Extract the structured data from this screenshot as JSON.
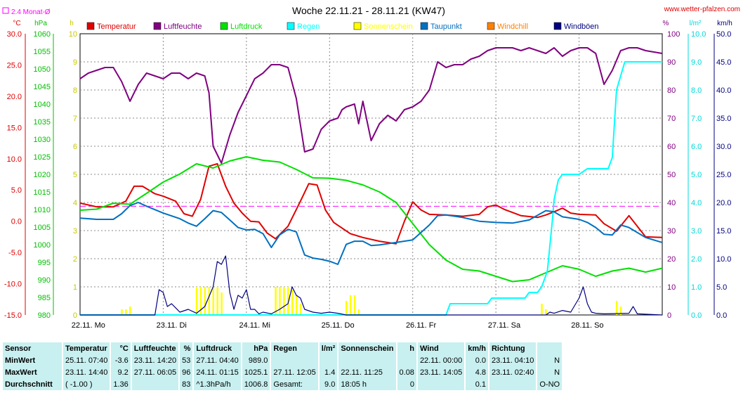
{
  "header": {
    "title": "Woche 22.11.21 - 28.11.21 (KW47)",
    "site": "www.wetter-pfalzen.com",
    "avg_legend": "2.4 Monat-Ø"
  },
  "colors": {
    "temperature": "#e00000",
    "humidity": "#800080",
    "pressure": "#00e000",
    "rain": "#00ffff",
    "sunshine": "#ffff00",
    "dewpoint": "#0070c0",
    "windchill": "#ff8000",
    "gusts": "#000080",
    "avgline": "#ff00ff",
    "table_bg": "#c8f0f0"
  },
  "chart_data": {
    "type": "line",
    "title": "Woche 22.11.21 - 28.11.21 (KW47)",
    "x_ticks": [
      "22.11. Mo",
      "23.11. Di",
      "24.11. Mi",
      "25.11. Do",
      "26.11. Fr",
      "27.11. Sa",
      "28.11. So"
    ],
    "x_range": [
      0,
      7
    ],
    "axes": {
      "temperature": {
        "unit": "°C",
        "range": [
          -15,
          30
        ],
        "ticks": [
          "30.0",
          "25.0",
          "20.0",
          "15.0",
          "10.0",
          "5.0",
          "0.0",
          "-5.0",
          "-10.0",
          "-15.0"
        ]
      },
      "pressure": {
        "unit": "hPa",
        "range": [
          980,
          1060
        ],
        "ticks": [
          "1060",
          "1055",
          "1050",
          "1045",
          "1040",
          "1035",
          "1030",
          "1025",
          "1020",
          "1015",
          "1010",
          "1005",
          "1000",
          "995",
          "990",
          "985",
          "980"
        ]
      },
      "sunshine": {
        "unit": "h",
        "range": [
          0,
          10
        ],
        "ticks": [
          "10",
          "9",
          "8",
          "7",
          "6",
          "5",
          "4",
          "3",
          "2",
          "1",
          "0"
        ]
      },
      "humidity": {
        "unit": "%",
        "range": [
          0,
          100
        ],
        "ticks": [
          "100",
          "90",
          "80",
          "70",
          "60",
          "50",
          "40",
          "30",
          "20",
          "10",
          "0"
        ]
      },
      "rain": {
        "unit": "l/m²",
        "range": [
          0,
          10
        ],
        "ticks": [
          "10.0",
          "9.0",
          "8.0",
          "7.0",
          "6.0",
          "5.0",
          "4.0",
          "3.0",
          "2.0",
          "1.0",
          "0.0"
        ]
      },
      "wind": {
        "unit": "km/h",
        "range": [
          0,
          50
        ],
        "ticks": [
          "50.0",
          "45.0",
          "40.0",
          "35.0",
          "30.0",
          "25.0",
          "20.0",
          "15.0",
          "10.0",
          "5.0",
          "0.0"
        ]
      }
    },
    "grid": true,
    "legend_position": "top",
    "monthly_average_temperature": 2.4,
    "series": [
      {
        "name": "Temperatur",
        "axis": "temperature",
        "color": "#e00000",
        "x": [
          0,
          0.2,
          0.4,
          0.55,
          0.65,
          0.75,
          0.9,
          1.0,
          1.15,
          1.25,
          1.35,
          1.45,
          1.55,
          1.65,
          1.75,
          1.85,
          1.95,
          2.05,
          2.15,
          2.25,
          2.35,
          2.5,
          2.65,
          2.75,
          2.85,
          2.95,
          3.05,
          3.15,
          3.25,
          3.4,
          3.6,
          3.8,
          3.9,
          4.0,
          4.1,
          4.2,
          4.4,
          4.6,
          4.8,
          4.9,
          5.0,
          5.1,
          5.3,
          5.5,
          5.6,
          5.7,
          5.8,
          5.9,
          6.0,
          6.2,
          6.3,
          6.45,
          6.6,
          6.8,
          7.0
        ],
        "y": [
          2.9,
          2.3,
          2.3,
          3.2,
          5.6,
          5.6,
          4.4,
          4.0,
          3.2,
          1.2,
          0.8,
          3.5,
          8.8,
          9.2,
          5.6,
          2.9,
          1.3,
          0.0,
          -0.1,
          -1.9,
          -2.8,
          -0.8,
          3.2,
          6.0,
          5.8,
          1.8,
          -0.2,
          -1.1,
          -2.0,
          -2.6,
          -3.2,
          -3.6,
          0.0,
          3.1,
          1.8,
          1.1,
          1.0,
          0.8,
          1.1,
          2.3,
          2.6,
          1.9,
          0.9,
          0.6,
          1.0,
          1.5,
          2.1,
          1.3,
          1.1,
          1.0,
          -0.4,
          -1.6,
          0.9,
          -2.5,
          -2.6
        ]
      },
      {
        "name": "Luftfeuchte",
        "axis": "humidity",
        "color": "#800080",
        "x": [
          0,
          0.1,
          0.2,
          0.3,
          0.4,
          0.5,
          0.6,
          0.7,
          0.8,
          0.9,
          1.0,
          1.1,
          1.2,
          1.3,
          1.4,
          1.5,
          1.55,
          1.6,
          1.7,
          1.8,
          1.9,
          2.0,
          2.1,
          2.2,
          2.3,
          2.4,
          2.5,
          2.6,
          2.7,
          2.8,
          2.9,
          3.0,
          3.1,
          3.15,
          3.2,
          3.3,
          3.35,
          3.4,
          3.5,
          3.6,
          3.7,
          3.8,
          3.9,
          4.0,
          4.1,
          4.2,
          4.3,
          4.4,
          4.5,
          4.6,
          4.7,
          4.8,
          4.9,
          5.0,
          5.1,
          5.2,
          5.3,
          5.4,
          5.5,
          5.6,
          5.7,
          5.8,
          5.9,
          6.0,
          6.1,
          6.2,
          6.3,
          6.4,
          6.5,
          6.6,
          6.7,
          6.8,
          7.0
        ],
        "y": [
          84,
          86,
          87,
          88,
          88,
          83,
          76,
          82,
          86,
          85,
          84,
          86,
          86,
          84,
          86,
          85,
          79,
          60,
          54,
          64,
          72,
          78,
          84,
          86,
          89,
          89,
          88,
          77,
          58,
          59,
          66,
          69,
          70,
          73,
          74,
          75,
          68,
          76,
          62,
          68,
          71,
          69,
          73,
          74,
          76,
          80,
          90,
          88,
          89,
          89,
          91,
          92,
          94,
          95,
          95,
          95,
          94,
          95,
          94,
          93,
          95,
          92,
          94,
          95,
          95,
          93,
          82,
          87,
          94,
          95,
          95,
          94,
          93
        ]
      },
      {
        "name": "Luftdruck",
        "axis": "pressure",
        "color": "#00e000",
        "x": [
          0,
          0.2,
          0.4,
          0.6,
          0.8,
          1.0,
          1.2,
          1.4,
          1.6,
          1.8,
          2.0,
          2.2,
          2.4,
          2.6,
          2.8,
          3.0,
          3.2,
          3.4,
          3.6,
          3.8,
          4.0,
          4.2,
          4.4,
          4.6,
          4.8,
          5.0,
          5.2,
          5.4,
          5.6,
          5.8,
          6.0,
          6.2,
          6.4,
          6.6,
          6.8,
          7.0
        ],
        "y": [
          1009.8,
          1010.1,
          1011.8,
          1011.5,
          1014.6,
          1017.8,
          1020.1,
          1023,
          1021.8,
          1023.8,
          1025,
          1024,
          1023.5,
          1021.4,
          1019,
          1018.9,
          1018.3,
          1017,
          1015,
          1012,
          1006,
          1000,
          995.6,
          993,
          992.5,
          991,
          989.5,
          990,
          992,
          994,
          993,
          991,
          992.5,
          993.3,
          992.2,
          993.3
        ]
      },
      {
        "name": "Regen",
        "axis": "rain",
        "color": "#00ffff",
        "x": [
          0,
          4.4,
          4.45,
          4.9,
          4.95,
          5.35,
          5.4,
          5.5,
          5.55,
          5.6,
          5.62,
          5.68,
          5.7,
          5.75,
          5.8,
          6.0,
          6.1,
          6.35,
          6.4,
          6.45,
          6.55,
          6.7,
          7.0
        ],
        "y": [
          0,
          0,
          0.4,
          0.4,
          0.6,
          0.6,
          0.8,
          0.8,
          1.0,
          1.4,
          1.6,
          3.4,
          4.1,
          4.8,
          5.0,
          5.0,
          5.2,
          5.2,
          5.6,
          8.0,
          9.0,
          9.0,
          9.0
        ]
      },
      {
        "name": "Sonnenschein",
        "axis": "sunshine",
        "color": "#ffff00",
        "x": [
          0.5,
          0.55,
          0.6,
          1.4,
          1.45,
          1.5,
          1.55,
          1.6,
          1.65,
          1.7,
          2.35,
          2.4,
          2.45,
          2.5,
          2.55,
          2.6,
          2.65,
          3.2,
          3.25,
          3.3,
          3.35,
          5.55,
          5.6,
          6.45,
          6.5
        ],
        "y": [
          0.2,
          0.2,
          0.3,
          1.0,
          1.0,
          1.0,
          1.0,
          1.0,
          1.0,
          0.8,
          1.0,
          1.0,
          1.0,
          1.0,
          0.9,
          0.7,
          0.4,
          0.5,
          0.7,
          0.7,
          0.2,
          0.4,
          0.2,
          0.5,
          0.3
        ]
      },
      {
        "name": "Taupunkt",
        "axis": "temperature",
        "color": "#0070c0",
        "x": [
          0,
          0.2,
          0.4,
          0.5,
          0.6,
          0.7,
          0.8,
          1.0,
          1.2,
          1.3,
          1.4,
          1.5,
          1.6,
          1.7,
          1.8,
          1.9,
          2.0,
          2.1,
          2.2,
          2.3,
          2.4,
          2.5,
          2.6,
          2.7,
          2.8,
          2.9,
          3.0,
          3.1,
          3.2,
          3.3,
          3.4,
          3.5,
          3.6,
          3.8,
          4.0,
          4.2,
          4.3,
          4.4,
          4.6,
          4.8,
          5.0,
          5.2,
          5.4,
          5.6,
          5.7,
          5.8,
          6.0,
          6.1,
          6.2,
          6.3,
          6.4,
          6.5,
          6.6,
          6.8,
          7.0
        ],
        "y": [
          0.5,
          0.3,
          0.3,
          1.2,
          2.5,
          3.0,
          2.4,
          1.3,
          0.4,
          -0.3,
          -0.8,
          0.4,
          1.7,
          1.4,
          0.2,
          -1.0,
          -1.4,
          -1.3,
          -2.0,
          -4.2,
          -2.2,
          -1.3,
          -1.7,
          -5.4,
          -5.9,
          -6.1,
          -6.4,
          -6.9,
          -3.7,
          -3.2,
          -3.2,
          -3.9,
          -3.8,
          -3.4,
          -3.0,
          -0.6,
          0.9,
          1.0,
          0.6,
          0.0,
          -0.2,
          -0.3,
          0.2,
          1.7,
          1.5,
          0.7,
          0.3,
          -0.2,
          -1.0,
          -2.1,
          -2.2,
          -0.6,
          -1.0,
          -2.6,
          -3.4
        ]
      },
      {
        "name": "Windchill",
        "axis": "temperature",
        "color": "#ff8000",
        "x": [],
        "y": []
      },
      {
        "name": "Windböen",
        "axis": "wind",
        "color": "#000080",
        "x": [
          0,
          0.9,
          0.95,
          1.0,
          1.05,
          1.1,
          1.2,
          1.3,
          1.4,
          1.5,
          1.6,
          1.65,
          1.7,
          1.75,
          1.8,
          1.85,
          1.9,
          1.95,
          2.0,
          2.05,
          2.1,
          2.15,
          2.2,
          2.3,
          2.4,
          2.5,
          2.55,
          2.6,
          2.65,
          2.7,
          2.8,
          2.9,
          3.0,
          3.1,
          3.2,
          5.6,
          5.65,
          5.7,
          5.8,
          5.9,
          6.0,
          6.05,
          6.1,
          6.15,
          6.2,
          6.3,
          6.6,
          6.65,
          6.7,
          7.0
        ],
        "y": [
          0,
          0,
          4.5,
          4.0,
          1.5,
          2.0,
          0.5,
          1.0,
          0.3,
          1.5,
          5.0,
          9.5,
          9.0,
          10.5,
          4.0,
          1.0,
          3.5,
          3.0,
          4.5,
          1.0,
          1.0,
          0.2,
          0.5,
          0.2,
          1.0,
          2.0,
          5.0,
          3.5,
          3.0,
          1.0,
          0.5,
          0.3,
          0.5,
          0.3,
          0,
          0,
          0.5,
          0.3,
          0.8,
          0.5,
          3.0,
          5.0,
          2.0,
          0.5,
          0.3,
          0.2,
          0.3,
          1.5,
          0.2,
          0
        ]
      }
    ]
  },
  "legend": [
    {
      "label": "Temperatur",
      "color": "#e00000"
    },
    {
      "label": "Luftfeuchte",
      "color": "#800080"
    },
    {
      "label": "Luftdruck",
      "color": "#00e000"
    },
    {
      "label": "Regen",
      "color": "#00ffff"
    },
    {
      "label": "Sonnenschein",
      "color": "#ffff00"
    },
    {
      "label": "Taupunkt",
      "color": "#0070c0"
    },
    {
      "label": "Windchill",
      "color": "#ff8000"
    },
    {
      "label": "Windböen",
      "color": "#000080"
    }
  ],
  "table": {
    "headers": [
      [
        "Sensor",
        ""
      ],
      [
        "Temperatur",
        "°C"
      ],
      [
        "Luftfeuchte",
        "%"
      ],
      [
        "Luftdruck",
        "hPa"
      ],
      [
        "Regen",
        "l/m²"
      ],
      [
        "Sonnenschein",
        "h"
      ],
      [
        "Wind",
        "km/h"
      ],
      [
        "Richtung",
        ""
      ]
    ],
    "rows": [
      {
        "label": "MinWert",
        "cells": [
          [
            "25.11.  07:40",
            "-3.6"
          ],
          [
            "23.11.  14:20",
            "53"
          ],
          [
            "27.11.  04:40",
            "989.0"
          ],
          [
            "",
            ""
          ],
          [
            "",
            ""
          ],
          [
            "22.11.  00:00",
            "0.0"
          ],
          [
            "23.11.  04:10",
            "N"
          ]
        ]
      },
      {
        "label": "MaxWert",
        "cells": [
          [
            "23.11.  14:40",
            "9.2"
          ],
          [
            "27.11.  06:05",
            "96"
          ],
          [
            "24.11.  01:15",
            "1025.1"
          ],
          [
            "27.11.  12:05",
            "1.4"
          ],
          [
            "22.11.  11:25",
            "0.08"
          ],
          [
            "23.11.  14:05",
            "4.8"
          ],
          [
            "23.11.  02:40",
            "N"
          ]
        ]
      },
      {
        "label": "Durchschnitt",
        "cells": [
          [
            "( -1.00 )",
            "1.36"
          ],
          [
            "",
            "83"
          ],
          [
            "^1.3hPa/h",
            "1006.8"
          ],
          [
            "Gesamt:",
            "9.0"
          ],
          [
            "18:05 h",
            "0"
          ],
          [
            "",
            "0.1"
          ],
          [
            "",
            "O-NO"
          ]
        ]
      }
    ]
  }
}
